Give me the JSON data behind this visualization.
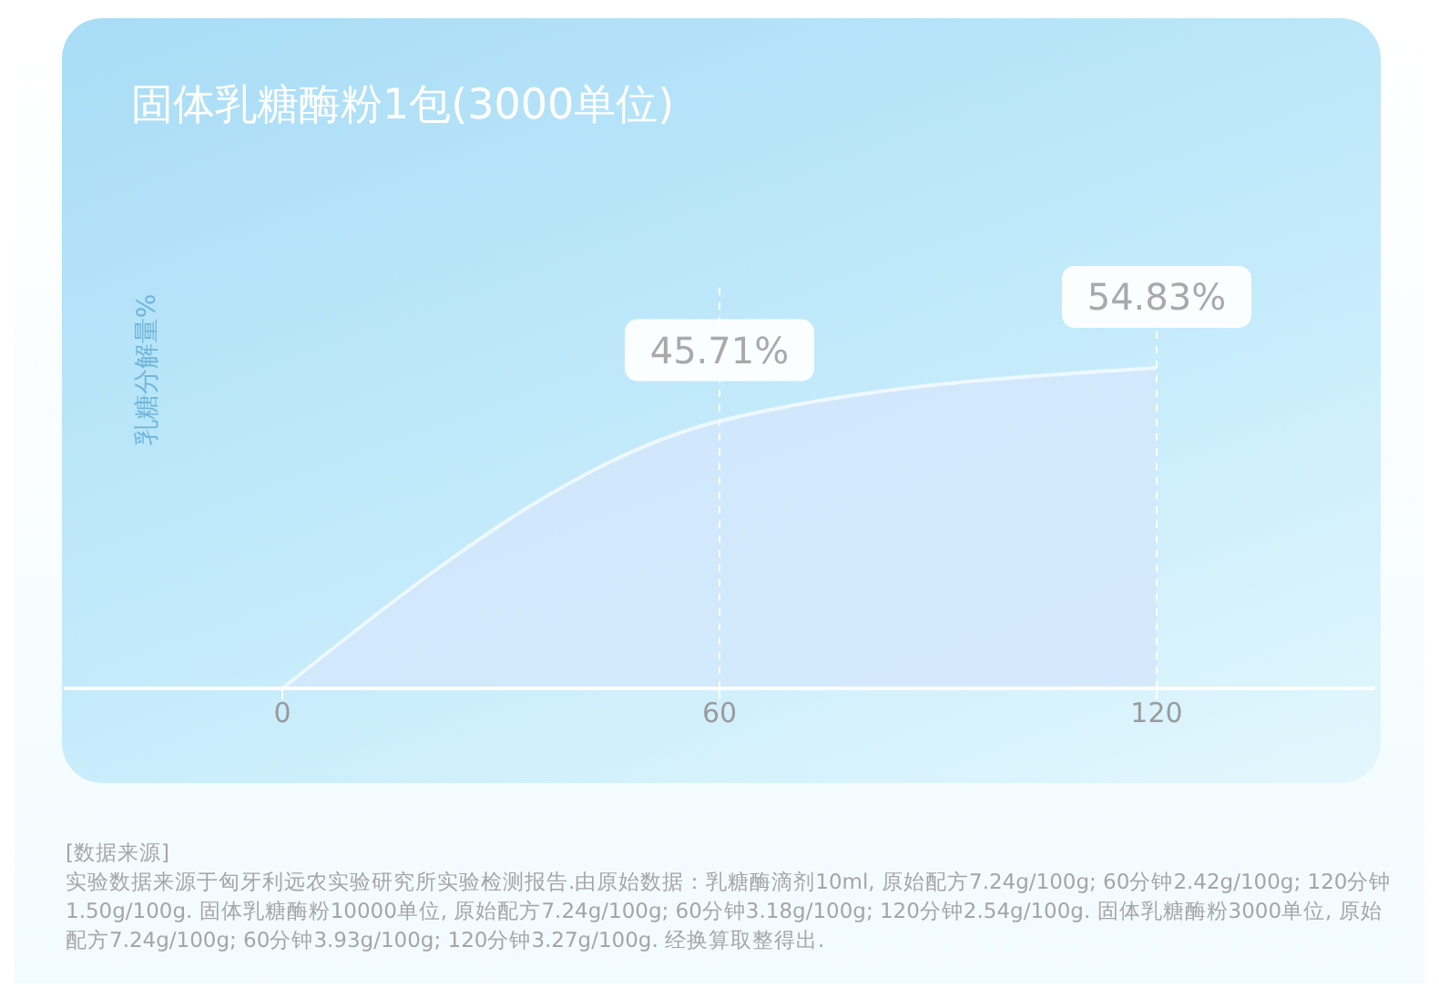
{
  "chart_data": {
    "type": "area",
    "title": "固体乳糖酶粉1包(3000单位)",
    "ylabel": "乳糖分解量%",
    "x": [
      0,
      60,
      120
    ],
    "values": [
      0,
      45.71,
      54.83
    ],
    "value_labels": [
      null,
      "45.71%",
      "54.83%"
    ],
    "color": "#d3e8fb",
    "xlim": [
      -30,
      150
    ],
    "xticks": [
      0,
      60,
      120
    ],
    "ref_lines": [
      {
        "axis": "x",
        "value": 60,
        "color": "#ffffff",
        "line_style": "dashed"
      },
      {
        "axis": "x",
        "value": 120,
        "color": "#ffffff",
        "line_style": "dashed"
      }
    ],
    "annotations": [
      "[数据来源]",
      "实验数据来源于匈牙利远农实验研究所实验检测报告.由原始数据：乳糖酶滴剂10ml, 原始配方7.24g/100g; 60分钟2.42g/100g; 120分钟1.50g/100g. 固体乳糖酶粉10000单位, 原始配方7.24g/100g; 60分钟3.18g/100g; 120分钟2.54g/100g. 固体乳糖酶粉3000单位, 原始配方7.24g/100g; 60分钟3.93g/100g; 120分钟3.27g/100g. 经换算取整得出."
    ]
  }
}
